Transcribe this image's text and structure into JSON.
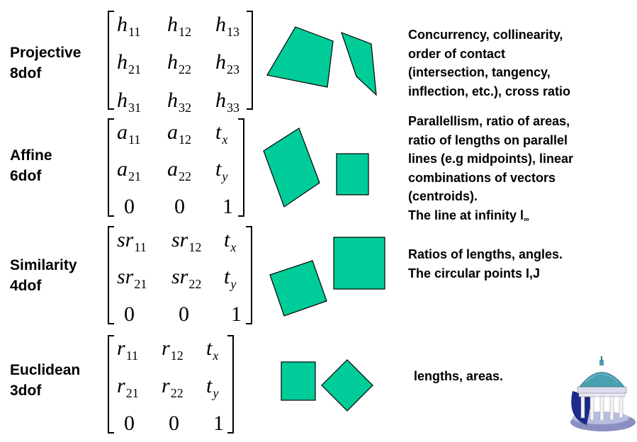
{
  "rows": [
    {
      "name": "Projective",
      "dof": "8dof",
      "matrix": [
        [
          {
            "b": "h",
            "s": "11"
          },
          {
            "b": "h",
            "s": "12"
          },
          {
            "b": "h",
            "s": "13"
          }
        ],
        [
          {
            "b": "h",
            "s": "21"
          },
          {
            "b": "h",
            "s": "22"
          },
          {
            "b": "h",
            "s": "23"
          }
        ],
        [
          {
            "b": "h",
            "s": "31"
          },
          {
            "b": "h",
            "s": "32"
          },
          {
            "b": "h",
            "s": "33"
          }
        ]
      ],
      "invariants": [
        "Concurrency, collinearity,",
        "order of contact",
        "(intersection, tangency,",
        "inflection, etc.), cross ratio"
      ]
    },
    {
      "name": "Affine",
      "dof": "6dof",
      "matrix": [
        [
          {
            "b": "a",
            "s": "11"
          },
          {
            "b": "a",
            "s": "12"
          },
          {
            "b": "t",
            "s": "x"
          }
        ],
        [
          {
            "b": "a",
            "s": "21"
          },
          {
            "b": "a",
            "s": "22"
          },
          {
            "b": "t",
            "s": "y"
          }
        ],
        [
          {
            "b": "0",
            "s": ""
          },
          {
            "b": "0",
            "s": ""
          },
          {
            "b": "1",
            "s": ""
          }
        ]
      ],
      "invariants": [
        "Parallellism, ratio of areas,",
        "ratio of lengths on parallel",
        "lines (e.g midpoints), linear",
        "combinations of vectors",
        "(centroids)."
      ],
      "extra_line": {
        "text": "The line at infinity l",
        "sub": "∞"
      }
    },
    {
      "name": "Similarity",
      "dof": "4dof",
      "matrix": [
        [
          {
            "b": "sr",
            "s": "11"
          },
          {
            "b": "sr",
            "s": "12"
          },
          {
            "b": "t",
            "s": "x"
          }
        ],
        [
          {
            "b": "sr",
            "s": "21"
          },
          {
            "b": "sr",
            "s": "22"
          },
          {
            "b": "t",
            "s": "y"
          }
        ],
        [
          {
            "b": "0",
            "s": ""
          },
          {
            "b": "0",
            "s": ""
          },
          {
            "b": "1",
            "s": ""
          }
        ]
      ],
      "invariants": [
        "Ratios of lengths, angles.",
        "The circular points I,J"
      ]
    },
    {
      "name": "Euclidean",
      "dof": "3dof",
      "matrix": [
        [
          {
            "b": "r",
            "s": "11"
          },
          {
            "b": "r",
            "s": "12"
          },
          {
            "b": "t",
            "s": "x"
          }
        ],
        [
          {
            "b": "r",
            "s": "21"
          },
          {
            "b": "r",
            "s": "22"
          },
          {
            "b": "t",
            "s": "y"
          }
        ],
        [
          {
            "b": "0",
            "s": ""
          },
          {
            "b": "0",
            "s": ""
          },
          {
            "b": "1",
            "s": ""
          }
        ]
      ],
      "invariants": [
        "lengths, areas."
      ]
    }
  ],
  "colors": {
    "shape_fill": "#00cc99",
    "dome": "#4a9fb0",
    "column": "#f4f4f8",
    "base": "#8a8fc0"
  },
  "icons": {
    "logo": "old-well-icon"
  }
}
